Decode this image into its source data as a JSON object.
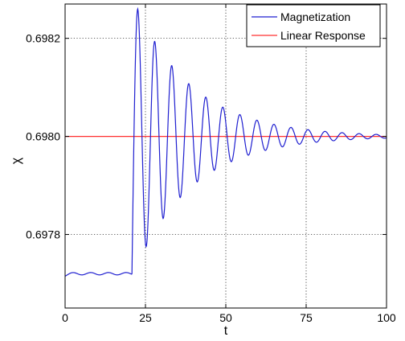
{
  "chart_data": {
    "type": "line",
    "xlabel": "t",
    "ylabel": "χ",
    "xlim": [
      0,
      100
    ],
    "ylim": [
      0.69765,
      0.69827
    ],
    "grid": true,
    "grid_style": "dotted",
    "legend_position": "top-right",
    "x_ticks": [
      0,
      25,
      50,
      75,
      100
    ],
    "x_tick_labels": [
      "0",
      "25",
      "50",
      "75",
      "100"
    ],
    "y_ticks": [
      0.6978,
      0.698,
      0.6982
    ],
    "y_tick_labels": [
      "0.6978",
      "0.6980",
      "0.6982"
    ],
    "series": [
      {
        "name": "Magnetization",
        "color": "#1f1fd0",
        "kind": "damped-oscillation",
        "baseline_before_step": 0.69772,
        "baseline_after_step": 0.698,
        "step_time": 20.8,
        "pre_step_oscillation_amplitude": 2.4e-06,
        "pre_step_period": 5.5,
        "first_peak": {
          "x": 22.6,
          "y": 0.69826
        },
        "first_trough": {
          "x": 25.1,
          "y": 0.69776
        },
        "post_step_period": 5.3,
        "decay_time_constant": 18.0,
        "points": [
          [
            0,
            0.69769
          ],
          [
            2.5,
            0.69774
          ],
          [
            5,
            0.6977
          ],
          [
            8,
            0.69773
          ],
          [
            11,
            0.6977
          ],
          [
            13.5,
            0.69773
          ],
          [
            16,
            0.69771
          ],
          [
            19,
            0.69772
          ],
          [
            20.8,
            0.69772
          ],
          [
            22.6,
            0.69826
          ],
          [
            25.1,
            0.69776
          ],
          [
            27.5,
            0.69819
          ],
          [
            30.3,
            0.69784
          ],
          [
            32.8,
            0.69813
          ],
          [
            35.5,
            0.69789
          ],
          [
            38.2,
            0.69809
          ],
          [
            40.8,
            0.69792
          ],
          [
            43.5,
            0.69808
          ],
          [
            46.1,
            0.69794
          ],
          [
            48.8,
            0.69804
          ],
          [
            51.5,
            0.69796
          ],
          [
            54.1,
            0.69803
          ],
          [
            56.8,
            0.69797
          ],
          [
            59.5,
            0.69802
          ],
          [
            62.1,
            0.69798
          ],
          [
            64.8,
            0.69802
          ],
          [
            67.5,
            0.69799
          ],
          [
            70.2,
            0.69801
          ],
          [
            75,
            0.698
          ],
          [
            80,
            0.698
          ],
          [
            90,
            0.698
          ],
          [
            100,
            0.698
          ]
        ]
      },
      {
        "name": "Linear Response",
        "color": "#ff3030",
        "kind": "constant",
        "values": [
          0.698,
          0.698
        ],
        "x": [
          0,
          100
        ]
      }
    ]
  }
}
